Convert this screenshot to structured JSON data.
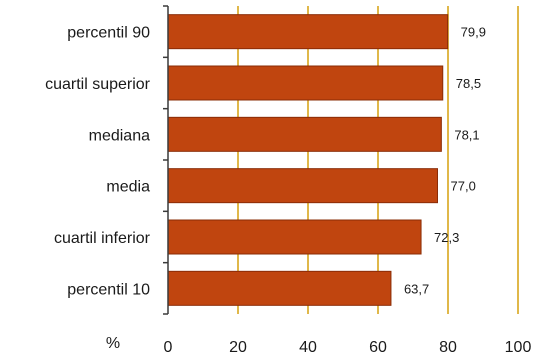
{
  "chart_data": {
    "type": "bar",
    "orientation": "horizontal",
    "categories": [
      "percentil 90",
      "cuartil superior",
      "mediana",
      "media",
      "cuartil inferior",
      "percentil 10"
    ],
    "values": [
      79.9,
      78.5,
      78.1,
      77.0,
      72.3,
      63.7
    ],
    "value_labels": [
      "79,9",
      "78,5",
      "78,1",
      "77,0",
      "72,3",
      "63,7"
    ],
    "xlabel": "%",
    "xlim": [
      0,
      100
    ],
    "ticks": [
      0,
      20,
      40,
      60,
      80,
      100
    ],
    "tick_labels": [
      "0",
      "20",
      "40",
      "60",
      "80",
      "100"
    ],
    "grid": true,
    "colors": {
      "bar": "#c0450f",
      "bar_edge": "#8a2c06",
      "grid": "#e0b84a",
      "axis": "#3a3a3a"
    }
  }
}
